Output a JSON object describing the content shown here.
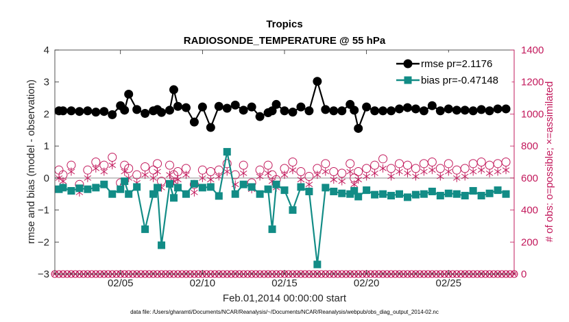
{
  "chart_data": {
    "type": "line",
    "title": "Tropics",
    "subtitle": "RADIOSONDE_TEMPERATURE @ 55 hPa",
    "xlabel": "Feb.01,2014 00:00:00 start",
    "ylabel_left": "rmse and bias (model - observation)",
    "ylabel_right": "# of obs: o=possible; ×=assimilated",
    "footnote": "data file: /Users/gharamti/Documents/NCAR/Reanalysis/~/Documents/NCAR/Reanalysis/webpub/obs_diag_output_2014-02.nc",
    "xlim": [
      1.0,
      29.0
    ],
    "ylim_left": [
      -3,
      4
    ],
    "ylim_right": [
      0,
      1400
    ],
    "x_ticks": [
      5,
      10,
      15,
      20,
      25
    ],
    "x_tick_labels": [
      "02/05",
      "02/10",
      "02/15",
      "02/20",
      "02/25"
    ],
    "y_left_ticks": [
      "-3",
      "-2",
      "-1",
      "0",
      "1",
      "2",
      "3",
      "4"
    ],
    "y_right_ticks": [
      "0",
      "200",
      "400",
      "600",
      "800",
      "1000",
      "1200",
      "1400"
    ],
    "zero_line": 0,
    "grid": false,
    "legend_position": "top-right",
    "colors": {
      "rmse": "#000000",
      "bias": "#128c86",
      "obs": "#c2185b",
      "zero_line": "#b3b3b3"
    },
    "x": [
      1.25,
      1.5,
      2.0,
      2.5,
      3.0,
      3.5,
      4.0,
      4.5,
      5.0,
      5.25,
      5.5,
      6.0,
      6.5,
      7.0,
      7.25,
      7.5,
      8.0,
      8.25,
      8.5,
      9.0,
      9.5,
      10.0,
      10.5,
      11.0,
      11.5,
      12.0,
      12.5,
      13.0,
      13.5,
      14.0,
      14.25,
      14.5,
      15.0,
      15.5,
      16.0,
      16.5,
      17.0,
      17.5,
      18.0,
      18.5,
      19.0,
      19.25,
      19.5,
      20.0,
      20.5,
      21.0,
      21.5,
      22.0,
      22.5,
      23.0,
      23.5,
      24.0,
      24.5,
      25.0,
      25.5,
      26.0,
      26.5,
      27.0,
      27.5,
      28.0,
      28.5
    ],
    "series": [
      {
        "name": "rmse pr=2.1176",
        "marker": "circle",
        "values": [
          2.1,
          2.1,
          2.1,
          2.08,
          2.1,
          2.06,
          2.08,
          1.98,
          2.26,
          2.12,
          2.62,
          2.14,
          2.02,
          2.1,
          2.14,
          2.05,
          2.12,
          2.76,
          2.24,
          2.2,
          1.75,
          2.22,
          1.58,
          2.24,
          2.18,
          2.28,
          2.12,
          2.22,
          1.92,
          2.04,
          2.1,
          2.3,
          2.1,
          2.06,
          2.22,
          2.1,
          3.02,
          2.14,
          2.1,
          2.1,
          2.3,
          2.12,
          1.55,
          2.22,
          2.1,
          2.1,
          2.1,
          2.16,
          2.2,
          2.16,
          2.1,
          2.26,
          2.1,
          2.16,
          2.12,
          2.12,
          2.1,
          2.14,
          2.1,
          2.16,
          2.16
        ]
      },
      {
        "name": "bias pr=-0.47148",
        "marker": "square",
        "values": [
          -0.35,
          -0.3,
          -0.4,
          -0.32,
          -0.35,
          -0.3,
          -0.2,
          -0.5,
          -0.35,
          -0.1,
          -0.5,
          -0.28,
          -1.6,
          -0.5,
          -0.3,
          -2.1,
          -0.18,
          -0.62,
          -0.3,
          -0.5,
          -0.18,
          -0.3,
          -0.28,
          -0.56,
          0.82,
          -0.5,
          -0.2,
          -0.28,
          -0.5,
          -0.35,
          -1.6,
          -0.2,
          -0.38,
          -1.0,
          -0.28,
          -0.42,
          -2.7,
          -0.3,
          -0.42,
          -0.48,
          -0.5,
          -0.4,
          -0.58,
          -0.38,
          -0.52,
          -0.5,
          -0.55,
          -0.5,
          -0.6,
          -0.52,
          -0.5,
          -0.42,
          -0.55,
          -0.48,
          -0.5,
          -0.55,
          -0.4,
          -0.55,
          -0.48,
          -0.38,
          -0.5
        ]
      },
      {
        "name": "possible",
        "marker": "open-circle",
        "axis": "right",
        "values": [
          650,
          620,
          680,
          560,
          650,
          700,
          680,
          730,
          570,
          680,
          660,
          620,
          670,
          650,
          690,
          580,
          680,
          620,
          640,
          660,
          560,
          650,
          640,
          650,
          690,
          620,
          680,
          570,
          650,
          680,
          620,
          590,
          660,
          700,
          640,
          610,
          660,
          690,
          640,
          630,
          690,
          600,
          640,
          660,
          680,
          720,
          660,
          690,
          680,
          660,
          690,
          700,
          660,
          690,
          650,
          660,
          690,
          700,
          680,
          690,
          700
        ]
      },
      {
        "name": "assimilated",
        "marker": "asterisk",
        "axis": "right",
        "values": [
          600,
          580,
          640,
          510,
          600,
          660,
          640,
          680,
          540,
          640,
          600,
          570,
          620,
          600,
          640,
          540,
          620,
          580,
          590,
          620,
          510,
          600,
          590,
          610,
          640,
          560,
          630,
          530,
          610,
          630,
          580,
          540,
          620,
          650,
          590,
          560,
          620,
          640,
          590,
          580,
          640,
          560,
          590,
          610,
          630,
          660,
          610,
          640,
          630,
          610,
          640,
          650,
          610,
          640,
          600,
          610,
          640,
          650,
          630,
          640,
          650
        ]
      }
    ],
    "zero_count_baseline": 0
  },
  "legend": {
    "rmse_label": "rmse pr=2.1176",
    "bias_label": "bias pr=-0.47148"
  }
}
